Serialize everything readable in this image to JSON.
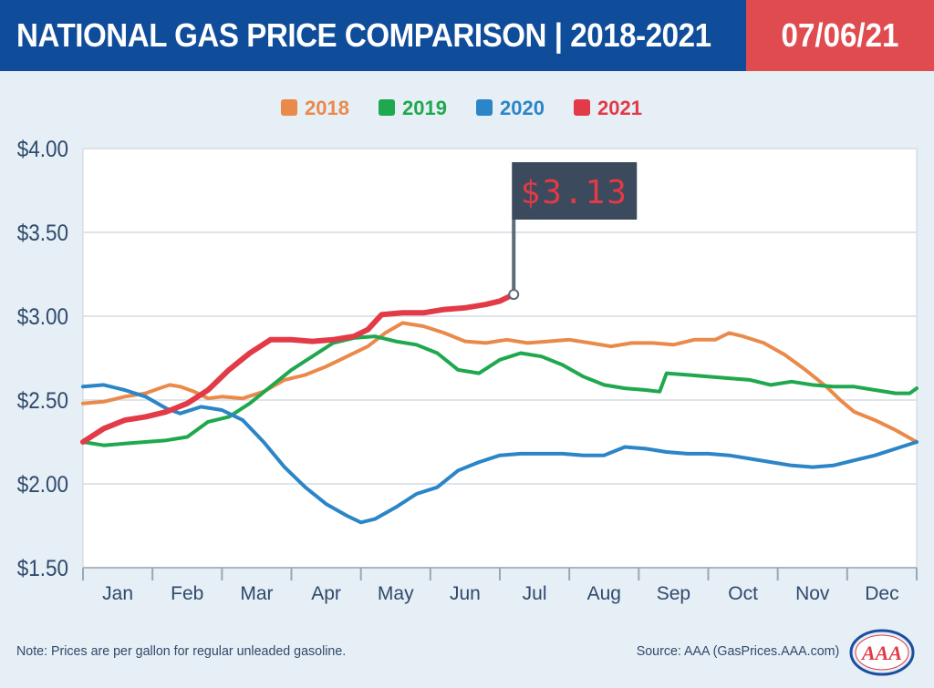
{
  "header": {
    "title": "NATIONAL GAS PRICE COMPARISON | 2018-2021",
    "date": "07/06/21",
    "title_color": "#0f4c9a",
    "date_color": "#e04b4f"
  },
  "chart_data": {
    "type": "line",
    "ylim": [
      1.5,
      4.0
    ],
    "yticks": [
      "$1.50",
      "$2.00",
      "$2.50",
      "$3.00",
      "$3.50",
      "$4.00"
    ],
    "ytick_values": [
      1.5,
      2.0,
      2.5,
      3.0,
      3.5,
      4.0
    ],
    "categories": [
      "Jan",
      "Feb",
      "Mar",
      "Apr",
      "May",
      "Jun",
      "Jul",
      "Aug",
      "Sep",
      "Oct",
      "Nov",
      "Dec"
    ],
    "grid": true,
    "legend_position": "top-center",
    "callout": {
      "series": "2021",
      "label": "$3.13",
      "value": 3.13
    },
    "series": [
      {
        "name": "2018",
        "color": "#ea8a4a",
        "points": [
          [
            0.0,
            2.48
          ],
          [
            0.3,
            2.49
          ],
          [
            0.6,
            2.52
          ],
          [
            0.9,
            2.54
          ],
          [
            1.1,
            2.57
          ],
          [
            1.25,
            2.59
          ],
          [
            1.4,
            2.58
          ],
          [
            1.6,
            2.55
          ],
          [
            1.8,
            2.51
          ],
          [
            2.0,
            2.52
          ],
          [
            2.3,
            2.51
          ],
          [
            2.6,
            2.55
          ],
          [
            2.9,
            2.62
          ],
          [
            3.2,
            2.65
          ],
          [
            3.5,
            2.7
          ],
          [
            3.8,
            2.76
          ],
          [
            4.1,
            2.82
          ],
          [
            4.35,
            2.9
          ],
          [
            4.6,
            2.96
          ],
          [
            4.9,
            2.94
          ],
          [
            5.2,
            2.9
          ],
          [
            5.5,
            2.85
          ],
          [
            5.8,
            2.84
          ],
          [
            6.1,
            2.86
          ],
          [
            6.4,
            2.84
          ],
          [
            6.7,
            2.85
          ],
          [
            7.0,
            2.86
          ],
          [
            7.3,
            2.84
          ],
          [
            7.6,
            2.82
          ],
          [
            7.9,
            2.84
          ],
          [
            8.2,
            2.84
          ],
          [
            8.5,
            2.83
          ],
          [
            8.8,
            2.86
          ],
          [
            9.1,
            2.86
          ],
          [
            9.3,
            2.9
          ],
          [
            9.5,
            2.88
          ],
          [
            9.8,
            2.84
          ],
          [
            10.1,
            2.77
          ],
          [
            10.4,
            2.68
          ],
          [
            10.7,
            2.58
          ],
          [
            10.9,
            2.5
          ],
          [
            11.1,
            2.43
          ],
          [
            11.4,
            2.38
          ],
          [
            11.7,
            2.32
          ],
          [
            12.0,
            2.25
          ]
        ]
      },
      {
        "name": "2019",
        "color": "#1fa84d",
        "points": [
          [
            0.0,
            2.25
          ],
          [
            0.3,
            2.23
          ],
          [
            0.6,
            2.24
          ],
          [
            0.9,
            2.25
          ],
          [
            1.2,
            2.26
          ],
          [
            1.5,
            2.28
          ],
          [
            1.8,
            2.37
          ],
          [
            2.1,
            2.4
          ],
          [
            2.4,
            2.48
          ],
          [
            2.7,
            2.58
          ],
          [
            3.0,
            2.68
          ],
          [
            3.3,
            2.76
          ],
          [
            3.6,
            2.84
          ],
          [
            3.9,
            2.87
          ],
          [
            4.2,
            2.88
          ],
          [
            4.5,
            2.85
          ],
          [
            4.8,
            2.83
          ],
          [
            5.1,
            2.78
          ],
          [
            5.4,
            2.68
          ],
          [
            5.7,
            2.66
          ],
          [
            6.0,
            2.74
          ],
          [
            6.3,
            2.78
          ],
          [
            6.6,
            2.76
          ],
          [
            6.9,
            2.71
          ],
          [
            7.2,
            2.64
          ],
          [
            7.5,
            2.59
          ],
          [
            7.8,
            2.57
          ],
          [
            8.1,
            2.56
          ],
          [
            8.3,
            2.55
          ],
          [
            8.4,
            2.66
          ],
          [
            8.7,
            2.65
          ],
          [
            9.0,
            2.64
          ],
          [
            9.3,
            2.63
          ],
          [
            9.6,
            2.62
          ],
          [
            9.9,
            2.59
          ],
          [
            10.2,
            2.61
          ],
          [
            10.5,
            2.59
          ],
          [
            10.8,
            2.58
          ],
          [
            11.1,
            2.58
          ],
          [
            11.4,
            2.56
          ],
          [
            11.7,
            2.54
          ],
          [
            11.9,
            2.54
          ],
          [
            12.0,
            2.57
          ]
        ]
      },
      {
        "name": "2020",
        "color": "#2b85c6",
        "points": [
          [
            0.0,
            2.58
          ],
          [
            0.3,
            2.59
          ],
          [
            0.6,
            2.56
          ],
          [
            0.9,
            2.52
          ],
          [
            1.2,
            2.45
          ],
          [
            1.4,
            2.42
          ],
          [
            1.7,
            2.46
          ],
          [
            2.0,
            2.44
          ],
          [
            2.3,
            2.38
          ],
          [
            2.6,
            2.25
          ],
          [
            2.9,
            2.1
          ],
          [
            3.2,
            1.98
          ],
          [
            3.5,
            1.88
          ],
          [
            3.8,
            1.81
          ],
          [
            4.0,
            1.77
          ],
          [
            4.2,
            1.79
          ],
          [
            4.5,
            1.86
          ],
          [
            4.8,
            1.94
          ],
          [
            5.1,
            1.98
          ],
          [
            5.4,
            2.08
          ],
          [
            5.7,
            2.13
          ],
          [
            6.0,
            2.17
          ],
          [
            6.3,
            2.18
          ],
          [
            6.6,
            2.18
          ],
          [
            6.9,
            2.18
          ],
          [
            7.2,
            2.17
          ],
          [
            7.5,
            2.17
          ],
          [
            7.8,
            2.22
          ],
          [
            8.1,
            2.21
          ],
          [
            8.4,
            2.19
          ],
          [
            8.7,
            2.18
          ],
          [
            9.0,
            2.18
          ],
          [
            9.3,
            2.17
          ],
          [
            9.6,
            2.15
          ],
          [
            9.9,
            2.13
          ],
          [
            10.2,
            2.11
          ],
          [
            10.5,
            2.1
          ],
          [
            10.8,
            2.11
          ],
          [
            11.1,
            2.14
          ],
          [
            11.4,
            2.17
          ],
          [
            11.7,
            2.21
          ],
          [
            12.0,
            2.25
          ]
        ]
      },
      {
        "name": "2021",
        "color": "#e23a46",
        "points": [
          [
            0.0,
            2.25
          ],
          [
            0.3,
            2.33
          ],
          [
            0.6,
            2.38
          ],
          [
            0.9,
            2.4
          ],
          [
            1.2,
            2.43
          ],
          [
            1.5,
            2.48
          ],
          [
            1.8,
            2.56
          ],
          [
            2.1,
            2.68
          ],
          [
            2.4,
            2.78
          ],
          [
            2.7,
            2.86
          ],
          [
            3.0,
            2.86
          ],
          [
            3.3,
            2.85
          ],
          [
            3.6,
            2.86
          ],
          [
            3.9,
            2.88
          ],
          [
            4.1,
            2.92
          ],
          [
            4.3,
            3.01
          ],
          [
            4.6,
            3.02
          ],
          [
            4.9,
            3.02
          ],
          [
            5.2,
            3.04
          ],
          [
            5.5,
            3.05
          ],
          [
            5.8,
            3.07
          ],
          [
            6.0,
            3.09
          ],
          [
            6.2,
            3.13
          ]
        ]
      }
    ]
  },
  "footer": {
    "note": "Note: Prices are per gallon for regular unleaded gasoline.",
    "source": "Source: AAA (GasPrices.AAA.com)",
    "logo_text": "AAA"
  }
}
